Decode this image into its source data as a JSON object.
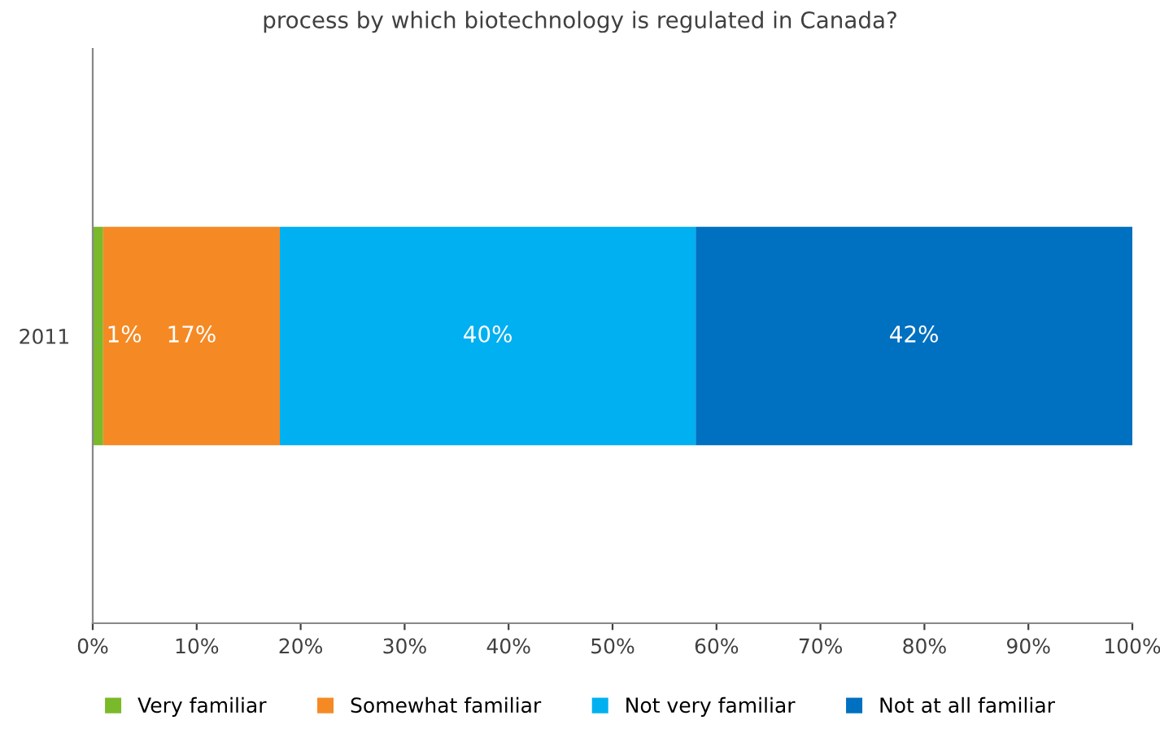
{
  "chart_data": {
    "type": "bar",
    "orientation": "horizontal",
    "stacked": true,
    "title": "process by which biotechnology is regulated in Canada?",
    "categories": [
      "2011"
    ],
    "series": [
      {
        "name": "Very familiar",
        "color": "#7ab929",
        "values": [
          1
        ],
        "value_labels": [
          "1%"
        ]
      },
      {
        "name": "Somewhat familiar",
        "color": "#f58a25",
        "values": [
          17
        ],
        "value_labels": [
          "17%"
        ]
      },
      {
        "name": "Not very familiar",
        "color": "#00b0f0",
        "values": [
          40
        ],
        "value_labels": [
          "40%"
        ]
      },
      {
        "name": "Not at all familiar",
        "color": "#0070c0",
        "values": [
          42
        ],
        "value_labels": [
          "42%"
        ]
      }
    ],
    "xlim": [
      0,
      100
    ],
    "xticks": [
      {
        "value": 0,
        "label": "0%"
      },
      {
        "value": 10,
        "label": "10%"
      },
      {
        "value": 20,
        "label": "20%"
      },
      {
        "value": 30,
        "label": "30%"
      },
      {
        "value": 40,
        "label": "40%"
      },
      {
        "value": 50,
        "label": "50%"
      },
      {
        "value": 60,
        "label": "60%"
      },
      {
        "value": 70,
        "label": "70%"
      },
      {
        "value": 80,
        "label": "80%"
      },
      {
        "value": 90,
        "label": "90%"
      },
      {
        "value": 100,
        "label": "100%"
      }
    ],
    "legend": "bottom",
    "grid": false
  }
}
